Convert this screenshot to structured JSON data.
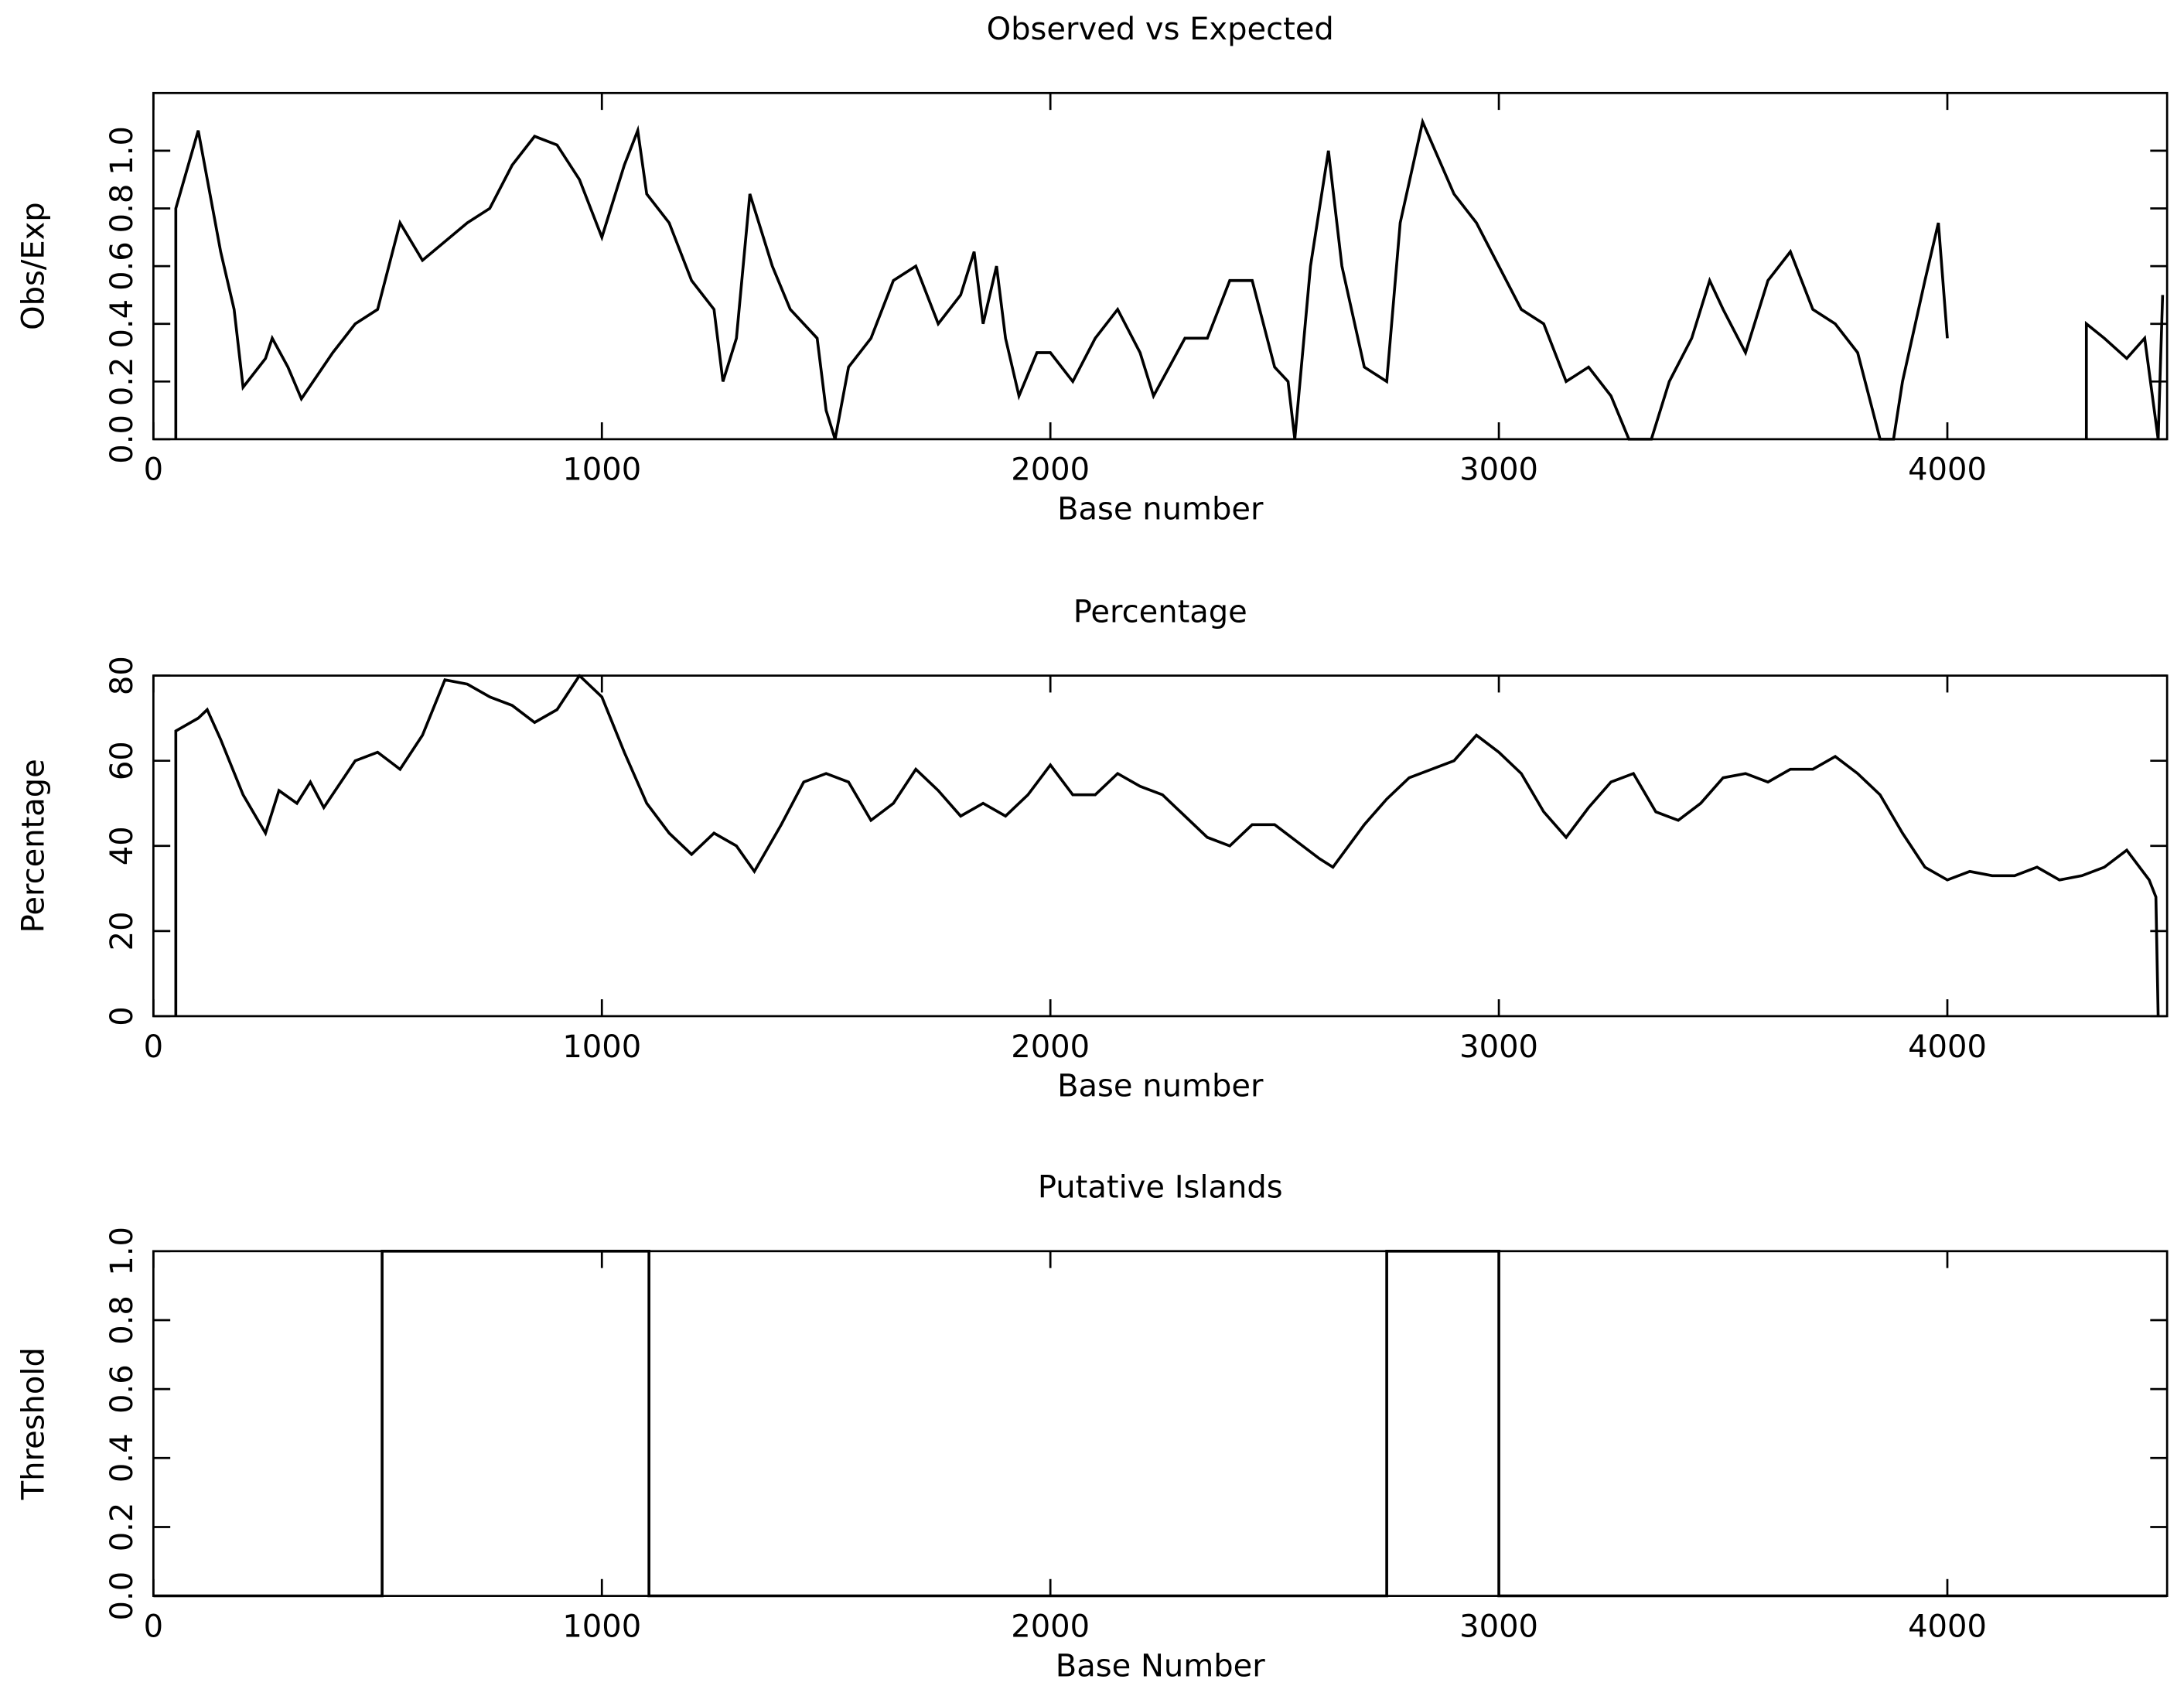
{
  "chart_data": [
    {
      "type": "line",
      "title": "Observed vs Expected",
      "xlabel": "Base number",
      "ylabel": "Obs/Exp",
      "xlim": [
        0,
        4490
      ],
      "ylim": [
        0,
        1.2
      ],
      "xticks": [
        0,
        1000,
        2000,
        3000,
        4000
      ],
      "yticks": [
        {
          "value": 0,
          "label": "0.0"
        },
        0.2,
        0.4,
        0.6,
        0.8,
        {
          "value": 1,
          "label": "1.0"
        }
      ],
      "series": [
        {
          "color": "#000000",
          "x": [
            50,
            50,
            100,
            150,
            180,
            200,
            250,
            265,
            300,
            330,
            400,
            450,
            500,
            550,
            600,
            700,
            750,
            800,
            850,
            900,
            950,
            1000,
            1050,
            1080,
            1100,
            1150,
            1200,
            1250,
            1270,
            1300,
            1330,
            1380,
            1420,
            1480,
            1500,
            1520,
            1550,
            1600,
            1650,
            1700,
            1750,
            1800,
            1830,
            1850,
            1880,
            1900,
            1930,
            1970,
            2000,
            2050,
            2100,
            2150,
            2200,
            2230,
            2300,
            2350,
            2400,
            2450,
            2500,
            2530,
            2545,
            2580,
            2620,
            2650,
            2700,
            2750,
            2780,
            2830,
            2900,
            2950,
            3000,
            3050,
            3100,
            3150,
            3200,
            3250,
            3290,
            3340,
            3380,
            3430,
            3470,
            3500,
            3550,
            3600,
            3650,
            3700,
            3750,
            3800,
            3850,
            3880,
            3900,
            3950,
            3980,
            4000,
            4010,
            4310,
            4310,
            4350,
            4400,
            4440,
            4470,
            4480
          ],
          "values": [
            0,
            0.8,
            1.07,
            0.65,
            0.45,
            0.18,
            0.28,
            0.35,
            0.25,
            0.14,
            0.3,
            0.4,
            0.45,
            0.75,
            0.62,
            0.75,
            0.8,
            0.95,
            1.05,
            1.02,
            0.9,
            0.7,
            0.95,
            1.07,
            0.85,
            0.75,
            0.55,
            0.45,
            0.2,
            0.35,
            0.85,
            0.6,
            0.45,
            0.35,
            0.1,
            0,
            0.25,
            0.35,
            0.55,
            0.6,
            0.4,
            0.5,
            0.65,
            0.4,
            0.6,
            0.35,
            0.15,
            0.3,
            0.3,
            0.2,
            0.35,
            0.45,
            0.3,
            0.15,
            0.35,
            0.35,
            0.55,
            0.55,
            0.25,
            0.2,
            0,
            0.6,
            1.0,
            0.6,
            0.25,
            0.2,
            0.75,
            1.1,
            0.85,
            0.75,
            0.6,
            0.45,
            0.4,
            0.2,
            0.25,
            0.15,
            0,
            0,
            0.2,
            0.35,
            0.55,
            0.45,
            0.3,
            0.55,
            0.65,
            0.45,
            0.4,
            0.3,
            0,
            0,
            0.2,
            0.55,
            0.75,
            0.35,
            null,
            0,
            0.4,
            0.35,
            0.28,
            0.35,
            0,
            0.5
          ]
        }
      ]
    },
    {
      "type": "line",
      "title": "Percentage",
      "xlabel": "Base number",
      "ylabel": "Percentage",
      "xlim": [
        0,
        4490
      ],
      "ylim": [
        0,
        80
      ],
      "xticks": [
        0,
        1000,
        2000,
        3000,
        4000
      ],
      "yticks": [
        0,
        20,
        40,
        60,
        80
      ],
      "series": [
        {
          "color": "#000000",
          "x": [
            50,
            50,
            100,
            120,
            150,
            200,
            250,
            280,
            320,
            350,
            380,
            450,
            500,
            550,
            600,
            650,
            700,
            750,
            800,
            850,
            900,
            950,
            1000,
            1050,
            1100,
            1150,
            1200,
            1250,
            1300,
            1340,
            1400,
            1450,
            1500,
            1550,
            1600,
            1650,
            1700,
            1750,
            1800,
            1850,
            1900,
            1950,
            2000,
            2050,
            2100,
            2150,
            2200,
            2250,
            2300,
            2350,
            2400,
            2450,
            2500,
            2550,
            2600,
            2630,
            2700,
            2750,
            2800,
            2850,
            2900,
            2950,
            3000,
            3050,
            3100,
            3150,
            3200,
            3250,
            3300,
            3350,
            3400,
            3450,
            3500,
            3550,
            3600,
            3650,
            3700,
            3750,
            3800,
            3850,
            3900,
            3950,
            4000,
            4050,
            4100,
            4150,
            4200,
            4250,
            4300,
            4350,
            4400,
            4450,
            4465,
            4470
          ],
          "values": [
            0,
            67,
            70,
            72,
            65,
            52,
            43,
            53,
            50,
            55,
            49,
            60,
            62,
            58,
            66,
            79,
            78,
            75,
            73,
            69,
            72,
            80,
            75,
            62,
            50,
            43,
            38,
            43,
            40,
            34,
            45,
            55,
            57,
            55,
            46,
            50,
            58,
            53,
            47,
            50,
            47,
            52,
            59,
            52,
            52,
            57,
            54,
            52,
            47,
            42,
            40,
            45,
            45,
            41,
            37,
            35,
            45,
            51,
            56,
            58,
            60,
            66,
            62,
            57,
            48,
            42,
            49,
            55,
            57,
            48,
            46,
            50,
            56,
            57,
            55,
            58,
            58,
            61,
            57,
            52,
            43,
            35,
            32,
            34,
            33,
            33,
            35,
            32,
            33,
            35,
            39,
            32,
            28,
            0
          ]
        }
      ]
    },
    {
      "type": "line",
      "title": "Putative Islands",
      "xlabel": "Base Number",
      "ylabel": "Threshold",
      "xlim": [
        0,
        4490
      ],
      "ylim": [
        0,
        1
      ],
      "xticks": [
        0,
        1000,
        2000,
        3000,
        4000
      ],
      "yticks": [
        {
          "value": 0,
          "label": "0.0"
        },
        0.2,
        0.4,
        0.6,
        0.8,
        {
          "value": 1,
          "label": "1.0"
        }
      ],
      "series": [
        {
          "color": "#000000",
          "x": [
            0,
            510,
            510,
            1105,
            1105,
            2750,
            2750,
            3000,
            3000,
            4490
          ],
          "values": [
            0,
            0,
            1,
            1,
            0,
            0,
            1,
            1,
            0,
            0
          ]
        }
      ]
    }
  ]
}
